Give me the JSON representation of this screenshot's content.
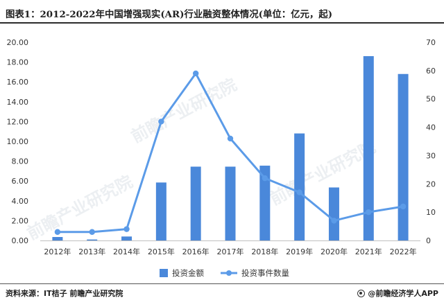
{
  "title": "图表1：2012-2022年中国增强现实(AR)行业融资整体情况(单位：亿元，起)",
  "source": "资料来源：IT桔子 前瞻产业研究院",
  "brand": "@前瞻经济学人APP",
  "watermark": "前瞻产业研究院",
  "colors": {
    "bar": "#4A88DA",
    "line": "#5B9BE8",
    "axis": "#888888",
    "text": "#333333"
  },
  "chart_data": {
    "type": "bar",
    "categories": [
      "2012年",
      "2013年",
      "2014年",
      "2015年",
      "2016年",
      "2017年",
      "2018年",
      "2019年",
      "2020年",
      "2021年",
      "2022年"
    ],
    "left_axis": {
      "min": 0,
      "max": 20,
      "step": 2,
      "ticks": [
        "0.00",
        "2.00",
        "4.00",
        "6.00",
        "8.00",
        "10.00",
        "12.00",
        "14.00",
        "16.00",
        "18.00",
        "20.00"
      ]
    },
    "right_axis": {
      "min": 0,
      "max": 70,
      "step": 10,
      "ticks": [
        "0",
        "10",
        "20",
        "30",
        "40",
        "50",
        "60",
        "70"
      ]
    },
    "series": [
      {
        "name": "投资金额",
        "type": "bar",
        "axis": "left",
        "values": [
          0.35,
          0.1,
          0.4,
          5.85,
          7.45,
          7.45,
          7.55,
          10.8,
          5.35,
          18.6,
          16.8
        ]
      },
      {
        "name": "投资事件数量",
        "type": "line",
        "axis": "right",
        "values": [
          3,
          3,
          4,
          42,
          59,
          36,
          22,
          17,
          7,
          10,
          12
        ]
      }
    ],
    "legend_position": "bottom",
    "grid": false
  }
}
